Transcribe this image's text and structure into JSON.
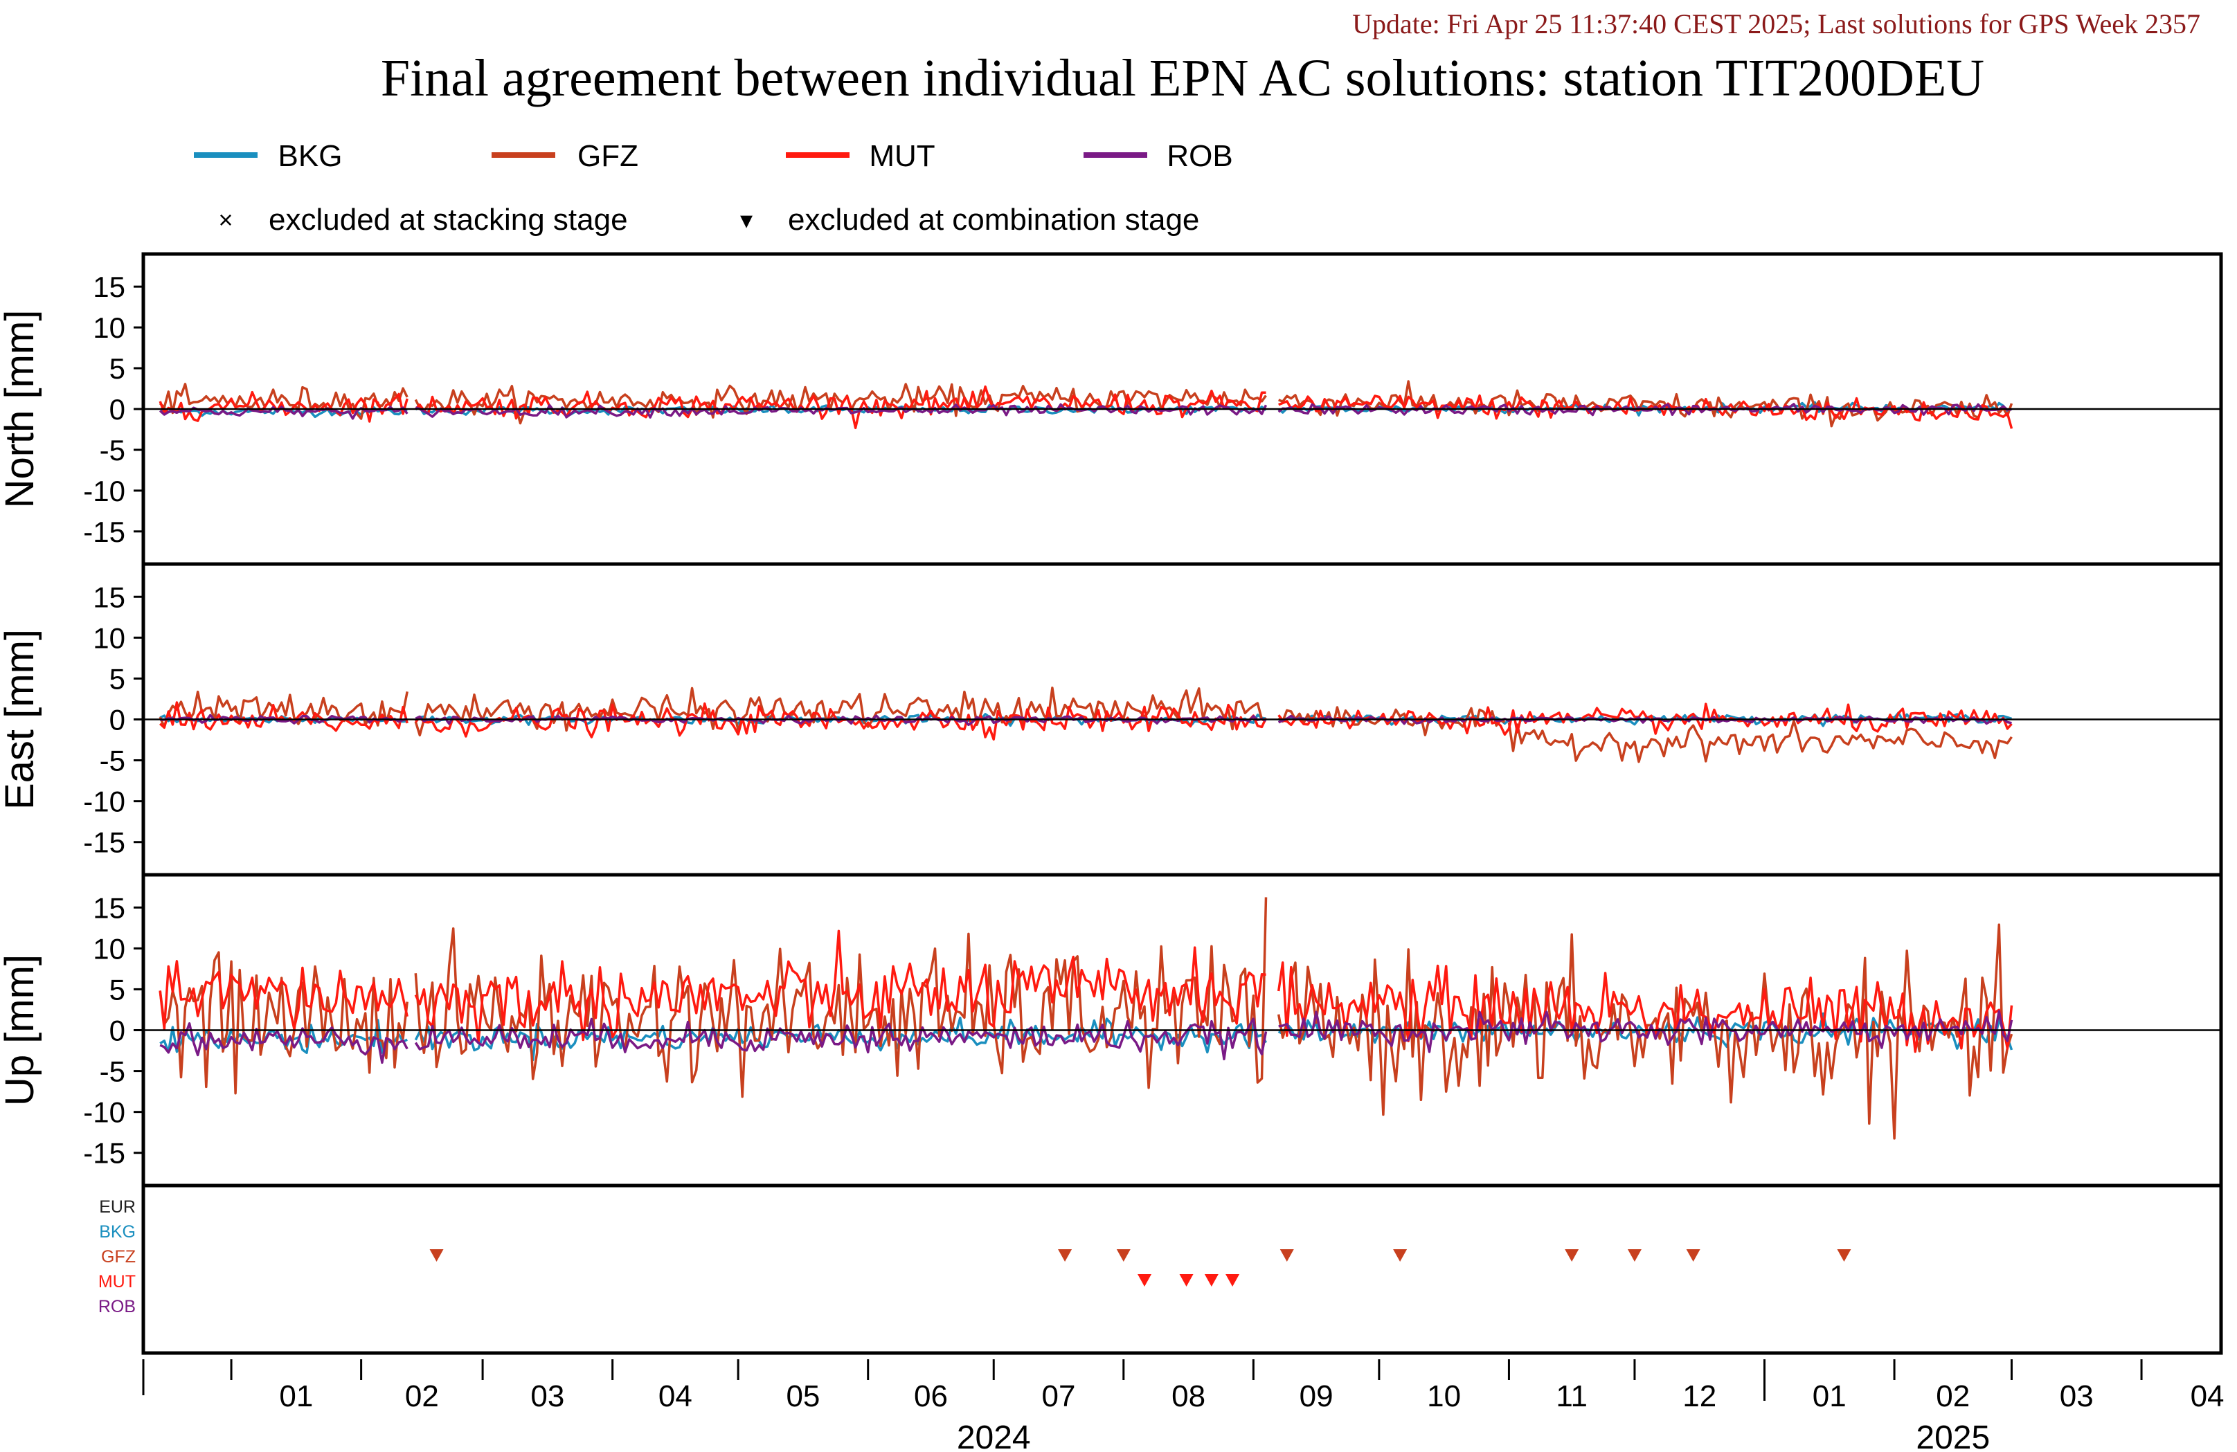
{
  "header": {
    "update_text": "Update: Fri Apr 25 11:37:40 CEST 2025; Last solutions for GPS Week 2357",
    "title": "Final agreement between individual EPN AC solutions: station TIT200DEU"
  },
  "legend": {
    "series": [
      {
        "name": "BKG",
        "color": "#1a8fbf"
      },
      {
        "name": "GFZ",
        "color": "#c8401e"
      },
      {
        "name": "MUT",
        "color": "#ff1a10"
      },
      {
        "name": "ROB",
        "color": "#7a1a86"
      }
    ],
    "markers": [
      {
        "symbol": "×",
        "label": "excluded at stacking stage"
      },
      {
        "symbol": "▾",
        "label": "excluded at combination stage"
      }
    ]
  },
  "chart_data": {
    "type": "line",
    "x_unit": "date",
    "xlim": [
      "2023-12-11",
      "2025-04-20"
    ],
    "month_ticks": [
      "2024-01-01",
      "2024-02-01",
      "2024-03-01",
      "2024-04-01",
      "2024-05-01",
      "2024-06-01",
      "2024-07-01",
      "2024-08-01",
      "2024-09-01",
      "2024-10-01",
      "2024-11-01",
      "2024-12-01",
      "2025-01-01",
      "2025-02-01",
      "2025-03-01",
      "2025-04-01"
    ],
    "month_labels": [
      "01",
      "02",
      "03",
      "04",
      "05",
      "06",
      "07",
      "08",
      "09",
      "10",
      "11",
      "12",
      "01",
      "02",
      "03",
      "04"
    ],
    "year_labels": [
      {
        "text": "2024",
        "center": "2024-07-01"
      },
      {
        "text": "2025",
        "center": "2025-02-15"
      }
    ],
    "year_divider": "2025-01-01",
    "panels": [
      {
        "id": "north",
        "ylabel": "North [mm]",
        "ylim": [
          -19,
          19
        ],
        "yticks": [
          15,
          10,
          5,
          0,
          -5,
          -10,
          -15
        ],
        "series": [
          {
            "name": "BKG",
            "segments": [
              {
                "x0": "2023-12-15",
                "x1": "2024-02-12",
                "level": [
                  -0.3,
                  -0.3
                ],
                "noise": 0.25
              },
              {
                "x0": "2024-02-14",
                "x1": "2024-09-04",
                "level": [
                  -0.2,
                  0.0
                ],
                "noise": 0.25
              },
              {
                "x0": "2024-09-07",
                "x1": "2025-03-01",
                "level": [
                  0.0,
                  0.2
                ],
                "noise": 0.25
              }
            ]
          },
          {
            "name": "GFZ",
            "segments": [
              {
                "x0": "2023-12-15",
                "x1": "2024-02-12",
                "level": [
                  0.8,
                  1.2
                ],
                "noise": 0.8
              },
              {
                "x0": "2024-02-14",
                "x1": "2024-09-04",
                "level": [
                  0.9,
                  1.4
                ],
                "noise": 0.8
              },
              {
                "x0": "2024-09-07",
                "x1": "2025-03-01",
                "level": [
                  1.0,
                  -0.3
                ],
                "noise": 0.8
              }
            ]
          },
          {
            "name": "MUT",
            "segments": [
              {
                "x0": "2023-12-15",
                "x1": "2024-02-12",
                "level": [
                  0.3,
                  0.5
                ],
                "noise": 0.7
              },
              {
                "x0": "2024-02-14",
                "x1": "2024-09-04",
                "level": [
                  0.4,
                  0.6
                ],
                "noise": 0.7
              },
              {
                "x0": "2024-09-07",
                "x1": "2025-03-01",
                "level": [
                  0.6,
                  -0.4
                ],
                "noise": 0.7
              }
            ]
          },
          {
            "name": "ROB",
            "segments": [
              {
                "x0": "2023-12-15",
                "x1": "2024-02-12",
                "level": [
                  -0.3,
                  -0.3
                ],
                "noise": 0.3
              },
              {
                "x0": "2024-02-14",
                "x1": "2024-09-04",
                "level": [
                  -0.3,
                  -0.1
                ],
                "noise": 0.3
              },
              {
                "x0": "2024-09-07",
                "x1": "2025-03-01",
                "level": [
                  -0.1,
                  0.0
                ],
                "noise": 0.3
              }
            ]
          }
        ]
      },
      {
        "id": "east",
        "ylabel": "East [mm]",
        "ylim": [
          -19,
          19
        ],
        "yticks": [
          15,
          10,
          5,
          0,
          -5,
          -10,
          -15
        ],
        "series": [
          {
            "name": "BKG",
            "segments": [
              {
                "x0": "2023-12-15",
                "x1": "2024-02-12",
                "level": [
                  0.0,
                  0.0
                ],
                "noise": 0.25
              },
              {
                "x0": "2024-02-14",
                "x1": "2024-09-04",
                "level": [
                  0.0,
                  0.0
                ],
                "noise": 0.25
              },
              {
                "x0": "2024-09-07",
                "x1": "2025-03-01",
                "level": [
                  0.0,
                  0.2
                ],
                "noise": 0.25
              }
            ]
          },
          {
            "name": "GFZ",
            "segments": [
              {
                "x0": "2023-12-15",
                "x1": "2024-02-12",
                "level": [
                  1.2,
                  1.0
                ],
                "noise": 1.0
              },
              {
                "x0": "2024-02-14",
                "x1": "2024-09-04",
                "level": [
                  1.0,
                  1.2
                ],
                "noise": 1.0
              },
              {
                "x0": "2024-09-07",
                "x1": "2024-10-31",
                "level": [
                  0.2,
                  0.0
                ],
                "noise": 0.8
              },
              {
                "x0": "2024-11-01",
                "x1": "2025-03-01",
                "level": [
                  -2.8,
                  -2.8
                ],
                "noise": 0.9
              }
            ]
          },
          {
            "name": "MUT",
            "segments": [
              {
                "x0": "2023-12-15",
                "x1": "2024-02-12",
                "level": [
                  -0.3,
                  -0.3
                ],
                "noise": 0.8
              },
              {
                "x0": "2024-02-14",
                "x1": "2024-09-04",
                "level": [
                  -0.3,
                  0.1
                ],
                "noise": 0.8
              },
              {
                "x0": "2024-09-07",
                "x1": "2025-03-01",
                "level": [
                  0.0,
                  -0.2
                ],
                "noise": 0.7
              }
            ]
          },
          {
            "name": "ROB",
            "segments": [
              {
                "x0": "2023-12-15",
                "x1": "2024-02-12",
                "level": [
                  0.0,
                  0.0
                ],
                "noise": 0.2
              },
              {
                "x0": "2024-02-14",
                "x1": "2024-09-04",
                "level": [
                  0.0,
                  0.0
                ],
                "noise": 0.2
              },
              {
                "x0": "2024-09-07",
                "x1": "2025-03-01",
                "level": [
                  0.0,
                  0.0
                ],
                "noise": 0.2
              }
            ]
          }
        ]
      },
      {
        "id": "up",
        "ylabel": "Up [mm]",
        "ylim": [
          -19,
          19
        ],
        "yticks": [
          15,
          10,
          5,
          0,
          -5,
          -10,
          -15
        ],
        "series": [
          {
            "name": "BKG",
            "segments": [
              {
                "x0": "2023-12-15",
                "x1": "2024-02-12",
                "level": [
                  -1.2,
                  -1.0
                ],
                "noise": 0.8
              },
              {
                "x0": "2024-02-14",
                "x1": "2024-09-04",
                "level": [
                  -1.0,
                  -0.5
                ],
                "noise": 0.8
              },
              {
                "x0": "2024-09-07",
                "x1": "2025-03-01",
                "level": [
                  -0.3,
                  0.0
                ],
                "noise": 0.8
              }
            ]
          },
          {
            "name": "GFZ",
            "segments": [
              {
                "x0": "2023-12-15",
                "x1": "2024-02-12",
                "level": [
                  1.5,
                  1.5
                ],
                "noise": 3.8
              },
              {
                "x0": "2024-02-14",
                "x1": "2024-09-04",
                "level": [
                  1.5,
                  2.0
                ],
                "noise": 4.0
              },
              {
                "x0": "2024-09-07",
                "x1": "2025-03-01",
                "level": [
                  0.5,
                  -1.0
                ],
                "noise": 4.2
              }
            ]
          },
          {
            "name": "MUT",
            "segments": [
              {
                "x0": "2023-12-15",
                "x1": "2024-02-12",
                "level": [
                  4.5,
                  4.0
                ],
                "noise": 2.0
              },
              {
                "x0": "2024-02-14",
                "x1": "2024-09-04",
                "level": [
                  3.5,
                  5.0
                ],
                "noise": 2.2
              },
              {
                "x0": "2024-09-07",
                "x1": "2025-03-01",
                "level": [
                  3.5,
                  1.5
                ],
                "noise": 2.0
              }
            ]
          },
          {
            "name": "ROB",
            "segments": [
              {
                "x0": "2023-12-15",
                "x1": "2024-02-12",
                "level": [
                  -1.2,
                  -1.2
                ],
                "noise": 0.9
              },
              {
                "x0": "2024-02-14",
                "x1": "2024-09-04",
                "level": [
                  -1.0,
                  -0.8
                ],
                "noise": 0.9
              },
              {
                "x0": "2024-09-07",
                "x1": "2025-03-01",
                "level": [
                  0.0,
                  0.0
                ],
                "noise": 0.9
              }
            ]
          }
        ]
      }
    ],
    "exclusions": {
      "rows": [
        {
          "name": "EUR",
          "color": "#222222"
        },
        {
          "name": "BKG",
          "color": "#1a8fbf"
        },
        {
          "name": "GFZ",
          "color": "#c8401e"
        },
        {
          "name": "MUT",
          "color": "#ff1a10"
        },
        {
          "name": "ROB",
          "color": "#7a1a86"
        }
      ],
      "combination_stage": [
        {
          "row": "GFZ",
          "date": "2024-02-19"
        },
        {
          "row": "GFZ",
          "date": "2024-07-18"
        },
        {
          "row": "GFZ",
          "date": "2024-08-01"
        },
        {
          "row": "MUT",
          "date": "2024-08-06"
        },
        {
          "row": "MUT",
          "date": "2024-08-16"
        },
        {
          "row": "MUT",
          "date": "2024-08-22"
        },
        {
          "row": "MUT",
          "date": "2024-08-27"
        },
        {
          "row": "GFZ",
          "date": "2024-09-09"
        },
        {
          "row": "GFZ",
          "date": "2024-10-06"
        },
        {
          "row": "GFZ",
          "date": "2024-11-16"
        },
        {
          "row": "GFZ",
          "date": "2024-12-01"
        },
        {
          "row": "GFZ",
          "date": "2024-12-15"
        },
        {
          "row": "GFZ",
          "date": "2025-01-20"
        }
      ]
    }
  }
}
